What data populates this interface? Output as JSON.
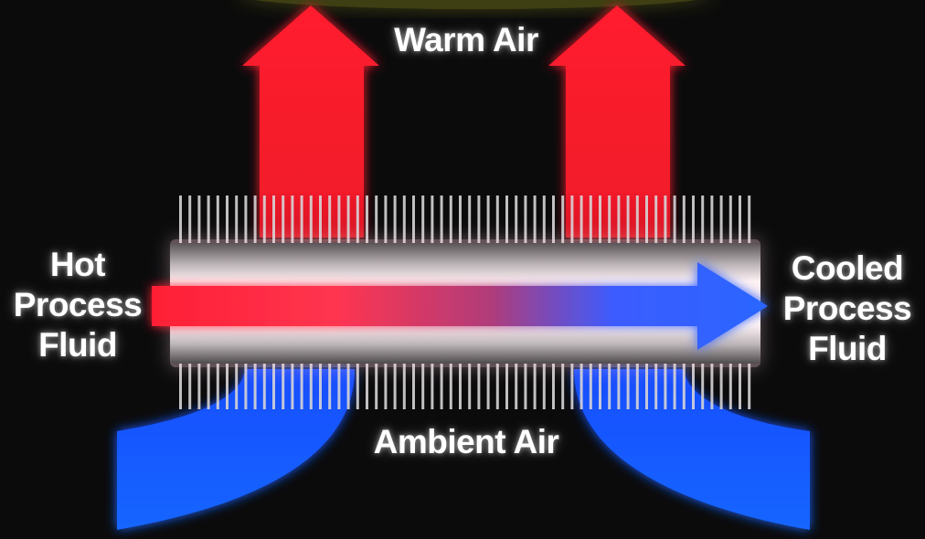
{
  "labels": {
    "top": "Warm Air",
    "bottom": "Ambient Air",
    "left": [
      "Hot",
      "Process",
      "Fluid"
    ],
    "right": [
      "Cooled",
      "Process",
      "Fluid"
    ]
  },
  "colors": {
    "background": "#0b0b0c",
    "warm_air": "#ff1c2c",
    "ambient_air": "#1466ff",
    "hot_fluid": "#ff2a3a",
    "cooled_fluid": "#2a5dff",
    "tube": "#d9d6d8",
    "fins": "#d8d8d8"
  }
}
